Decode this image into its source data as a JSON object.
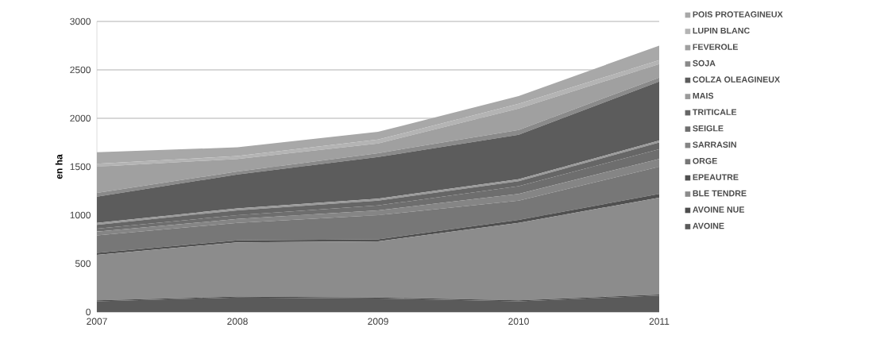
{
  "chart_data": {
    "type": "area",
    "stacked": true,
    "ylabel": "en ha",
    "x": [
      2007,
      2008,
      2009,
      2010,
      2011
    ],
    "xlim": [
      2007,
      2011
    ],
    "xticks": [
      2007,
      2008,
      2009,
      2010,
      2011
    ],
    "ylim": [
      0,
      3000
    ],
    "yticks": [
      0,
      500,
      1000,
      1500,
      2000,
      2500,
      3000
    ],
    "grid": "y",
    "legend": "right",
    "series": [
      {
        "name": "AVOINE",
        "color": "#5a5a5a",
        "values": [
          110,
          150,
          140,
          110,
          170
        ]
      },
      {
        "name": "AVOINE NUE",
        "color": "#4d4d4d",
        "values": [
          10,
          10,
          10,
          10,
          10
        ]
      },
      {
        "name": "BLE TENDRE",
        "color": "#8c8c8c",
        "values": [
          470,
          560,
          580,
          800,
          1000
        ]
      },
      {
        "name": "EPEAUTRE",
        "color": "#505050",
        "values": [
          20,
          20,
          20,
          30,
          40
        ]
      },
      {
        "name": "ORGE",
        "color": "#777777",
        "values": [
          180,
          180,
          250,
          200,
          280
        ]
      },
      {
        "name": "SARRASIN",
        "color": "#858585",
        "values": [
          40,
          40,
          50,
          70,
          80
        ]
      },
      {
        "name": "SEIGLE",
        "color": "#6e6e6e",
        "values": [
          30,
          40,
          50,
          80,
          100
        ]
      },
      {
        "name": "TRITICALE",
        "color": "#666666",
        "values": [
          40,
          50,
          50,
          50,
          70
        ]
      },
      {
        "name": "MAIS",
        "color": "#9a9a9a",
        "values": [
          20,
          20,
          20,
          20,
          20
        ]
      },
      {
        "name": "COLZA OLEAGINEUX",
        "color": "#5c5c5c",
        "values": [
          270,
          350,
          430,
          460,
          610
        ]
      },
      {
        "name": "SOJA",
        "color": "#8a8a8a",
        "values": [
          40,
          30,
          40,
          50,
          40
        ]
      },
      {
        "name": "FEVEROLE",
        "color": "#a0a0a0",
        "values": [
          270,
          130,
          100,
          220,
          140
        ]
      },
      {
        "name": "LUPIN BLANC",
        "color": "#b4b4b4",
        "values": [
          30,
          30,
          40,
          50,
          40
        ]
      },
      {
        "name": "POIS PROTEAGINEUX",
        "color": "#a8a8a8",
        "values": [
          120,
          90,
          80,
          80,
          150
        ]
      }
    ]
  }
}
